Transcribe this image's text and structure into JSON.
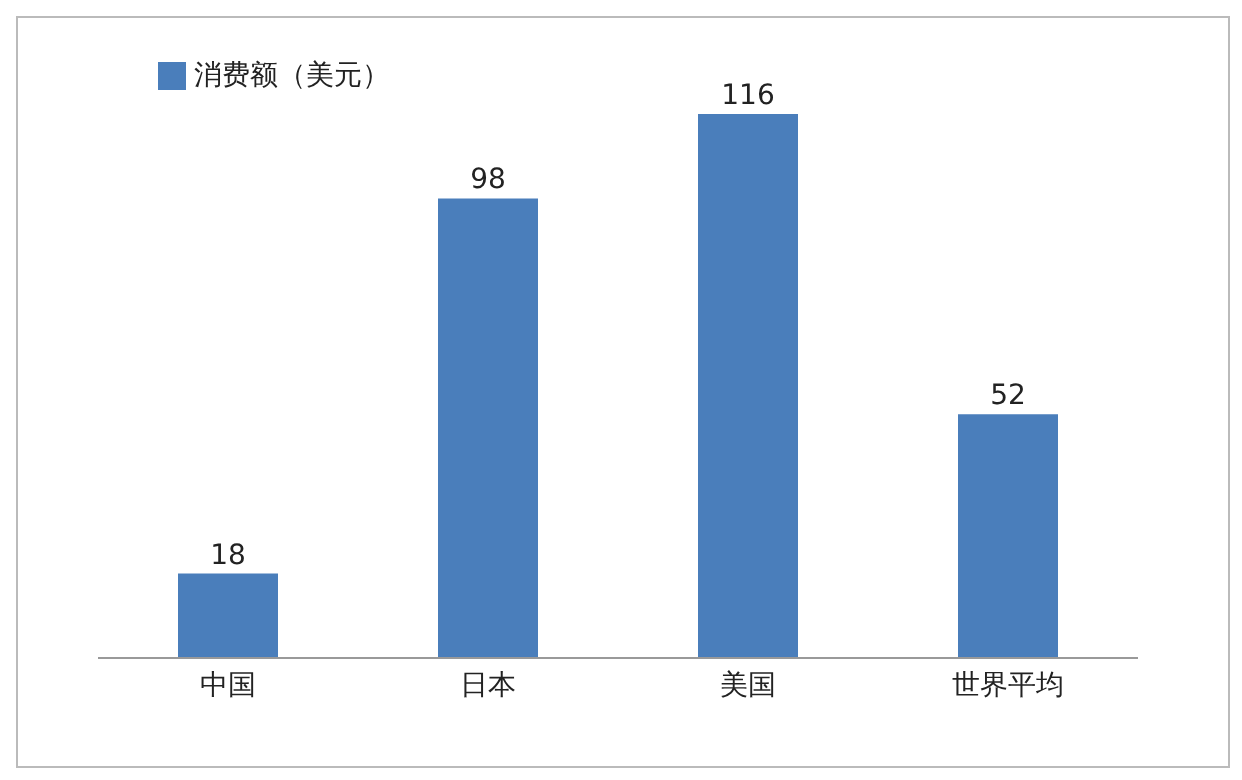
{
  "chart_data": {
    "type": "bar",
    "categories": [
      "中国",
      "日本",
      "美国",
      "世界平均"
    ],
    "series": [
      {
        "name": "消费额（美元）",
        "color": "#4a7ebb",
        "values": [
          18,
          98,
          116,
          52
        ]
      }
    ],
    "data_labels": true,
    "legend": "top left",
    "tick_labels": "x"
  }
}
